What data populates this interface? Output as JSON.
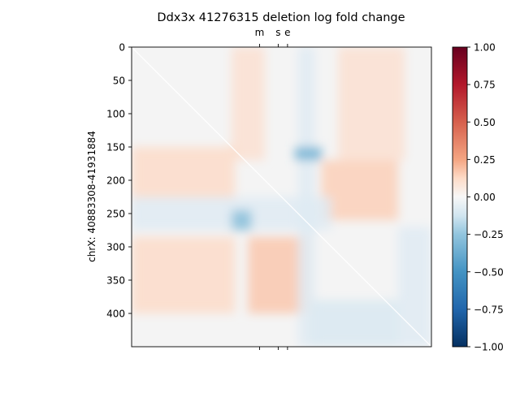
{
  "chart_data": {
    "type": "heatmap",
    "title": "Ddx3x 41276315 deletion log fold change",
    "ylabel": "chrX: 40883308-41931884",
    "xlabel": "",
    "ylim": [
      0,
      450
    ],
    "y_ticks": [
      0,
      50,
      100,
      150,
      200,
      250,
      300,
      350,
      400
    ],
    "top_ticks": [
      {
        "label": "m",
        "pos": 192
      },
      {
        "label": "s",
        "pos": 220
      },
      {
        "label": "e",
        "pos": 234
      }
    ],
    "colorbar": {
      "colormap": "RdBu_r",
      "vmin": -1.0,
      "vmax": 1.0,
      "tick_values": [
        1.0,
        0.75,
        0.5,
        0.25,
        0.0,
        -0.25,
        -0.5,
        -0.75,
        -1.0
      ],
      "tick_labels": [
        "1.00",
        "0.75",
        "0.50",
        "0.25",
        "0.00",
        "−0.25",
        "−0.50",
        "−0.75",
        "−1.00"
      ]
    },
    "diagonal": "white line from top-left to bottom-right",
    "regions": [
      {
        "rows": [
          0,
          170
        ],
        "cols": [
          150,
          200
        ],
        "value": 0.1
      },
      {
        "rows": [
          0,
          170
        ],
        "cols": [
          310,
          410
        ],
        "value": 0.1
      },
      {
        "rows": [
          150,
          230
        ],
        "cols": [
          0,
          155
        ],
        "value": 0.12
      },
      {
        "rows": [
          170,
          260
        ],
        "cols": [
          285,
          400
        ],
        "value": 0.15
      },
      {
        "rows": [
          285,
          400
        ],
        "cols": [
          0,
          155
        ],
        "value": 0.12
      },
      {
        "rows": [
          285,
          400
        ],
        "cols": [
          175,
          265
        ],
        "value": 0.17
      },
      {
        "rows": [
          0,
          450
        ],
        "cols": [
          250,
          275
        ],
        "value": -0.08
      },
      {
        "rows": [
          225,
          275
        ],
        "cols": [
          0,
          300
        ],
        "value": -0.08
      },
      {
        "rows": [
          150,
          170
        ],
        "cols": [
          245,
          285
        ],
        "value": -0.35
      },
      {
        "rows": [
          245,
          275
        ],
        "cols": [
          150,
          180
        ],
        "value": -0.28
      },
      {
        "rows": [
          270,
          450
        ],
        "cols": [
          400,
          450
        ],
        "value": -0.08
      },
      {
        "rows": [
          380,
          450
        ],
        "cols": [
          270,
          400
        ],
        "value": -0.1
      }
    ]
  }
}
